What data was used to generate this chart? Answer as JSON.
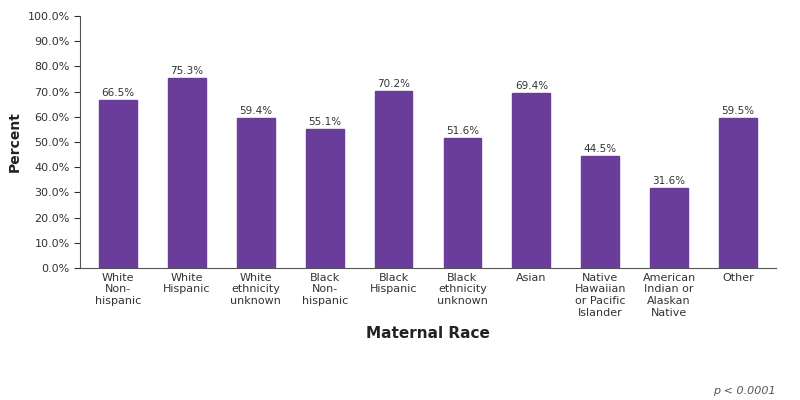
{
  "categories": [
    "White\nNon-\nhispanic",
    "White\nHispanic",
    "White\nethnicity\nunknown",
    "Black\nNon-\nhispanic",
    "Black\nHispanic",
    "Black\nethnicity\nunknown",
    "Asian",
    "Native\nHawaiian\nor Pacific\nIslander",
    "American\nIndian or\nAlaskan\nNative",
    "Other"
  ],
  "values": [
    66.5,
    75.3,
    59.4,
    55.1,
    70.2,
    51.6,
    69.4,
    44.5,
    31.6,
    59.5
  ],
  "bar_color": "#6A3D9A",
  "xlabel": "Maternal Race",
  "ylabel": "Percent",
  "ylim": [
    0,
    100
  ],
  "ytick_labels": [
    "0.0%",
    "10.0%",
    "20.0%",
    "30.0%",
    "40.0%",
    "50.0%",
    "60.0%",
    "70.0%",
    "80.0%",
    "90.0%",
    "100.0%"
  ],
  "ytick_values": [
    0,
    10,
    20,
    30,
    40,
    50,
    60,
    70,
    80,
    90,
    100
  ],
  "annotation_fontsize": 7.5,
  "xlabel_fontsize": 11,
  "ylabel_fontsize": 10,
  "tick_label_fontsize": 8,
  "p_value_text": "p < 0.0001",
  "background_color": "#ffffff",
  "bar_width": 0.55
}
